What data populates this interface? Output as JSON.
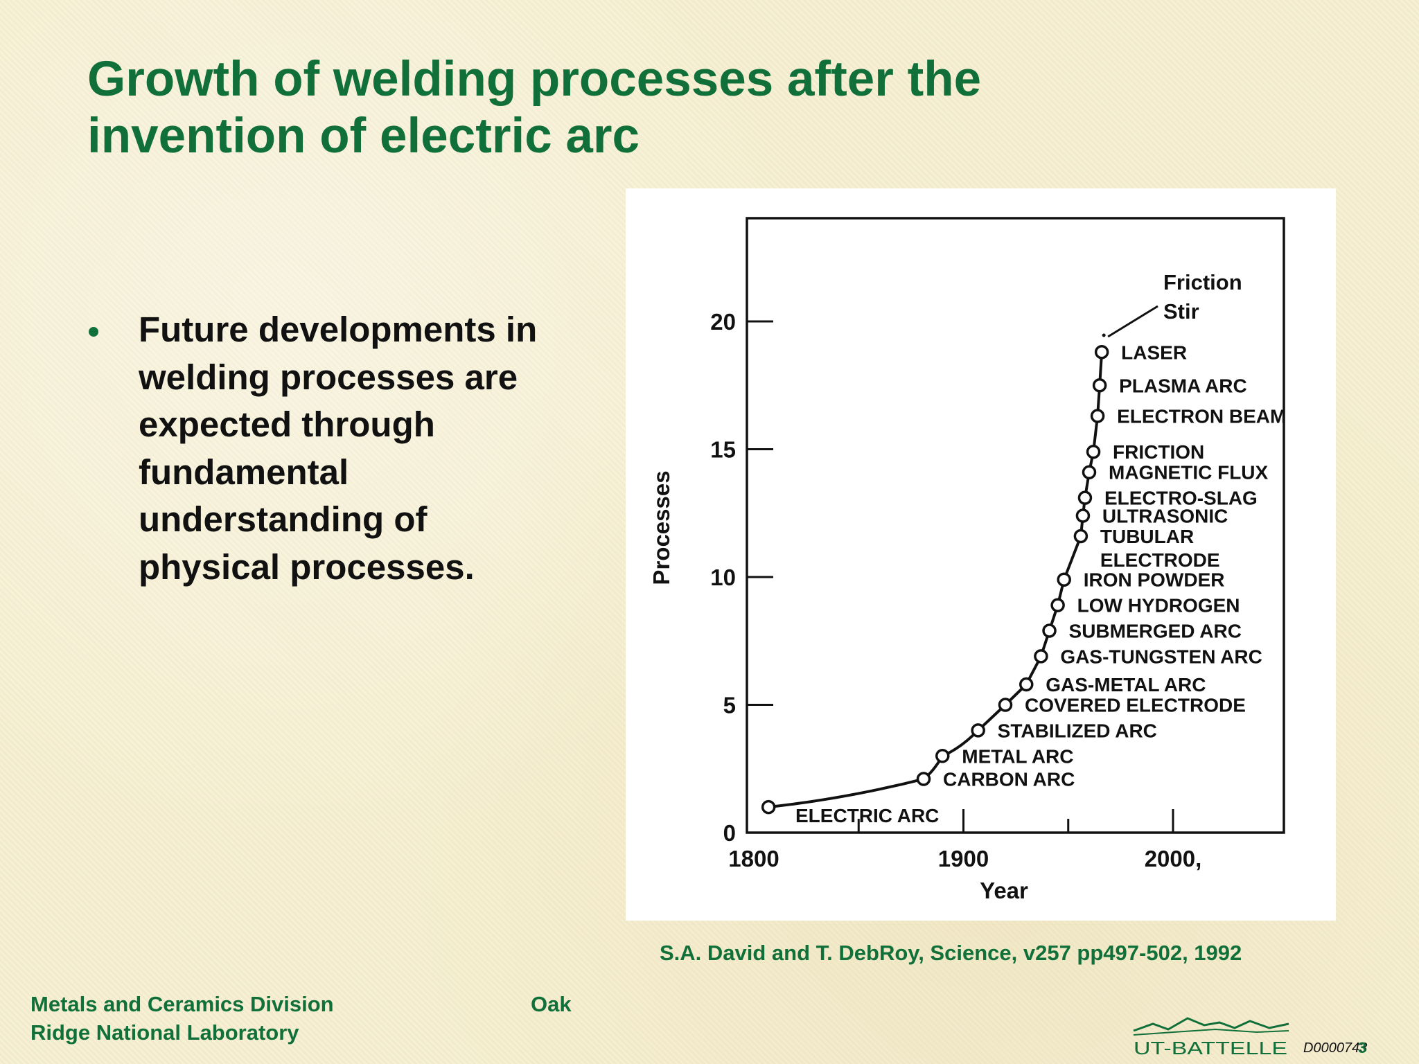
{
  "slide": {
    "title_line1": "Growth of welding processes after the",
    "title_line2": "invention of electric arc",
    "bullet_lines": [
      "Future developments in",
      "welding processes are",
      "expected through",
      "fundamental",
      "understanding of",
      "physical processes."
    ],
    "citation": "S.A. David and T. DebRoy, Science, v257 pp497-502, 1992",
    "footer_left": "Metals and Ceramics Division",
    "footer_mid": "Oak",
    "footer_left2": "Ridge National Laboratory",
    "logo_text": "UT-BATTELLE",
    "doc_id": "D0000743",
    "page_number": "3",
    "accent_color": "#11703a"
  },
  "chart_data": {
    "type": "line",
    "title": "",
    "xlabel": "Year",
    "ylabel": "Processes",
    "xlim": [
      1800,
      2050
    ],
    "ylim": [
      0,
      24
    ],
    "x_ticks": [
      1800,
      1900,
      2000
    ],
    "x_tick_labels": [
      "1800",
      "1900",
      "2000,"
    ],
    "y_ticks": [
      0,
      5,
      10,
      15,
      20
    ],
    "y_tick_labels": [
      "0",
      "5",
      "10",
      "15",
      "20"
    ],
    "grid": false,
    "legend": "none",
    "series": [
      {
        "points": [
          {
            "x": 1807,
            "y": 1,
            "label": "ELECTRIC ARC"
          },
          {
            "x": 1881,
            "y": 2.1,
            "label": "CARBON ARC"
          },
          {
            "x": 1890,
            "y": 3,
            "label": "METAL ARC"
          },
          {
            "x": 1907,
            "y": 4,
            "label": "STABILIZED ARC"
          },
          {
            "x": 1920,
            "y": 5,
            "label": "COVERED ELECTRODE"
          },
          {
            "x": 1930,
            "y": 5.8,
            "label": "GAS-METAL ARC"
          },
          {
            "x": 1937,
            "y": 6.9,
            "label": "GAS-TUNGSTEN ARC"
          },
          {
            "x": 1941,
            "y": 7.9,
            "label": "SUBMERGED ARC"
          },
          {
            "x": 1945,
            "y": 8.9,
            "label": "LOW HYDROGEN"
          },
          {
            "x": 1948,
            "y": 9.9,
            "label": "IRON POWDER"
          },
          {
            "x": 1956,
            "y": 11.6,
            "label": "TUBULAR ELECTRODE"
          },
          {
            "x": 1957,
            "y": 12.4,
            "label": "ULTRASONIC"
          },
          {
            "x": 1958,
            "y": 13.1,
            "label": "ELECTRO-SLAG"
          },
          {
            "x": 1960,
            "y": 14.1,
            "label": "MAGNETIC FLUX"
          },
          {
            "x": 1962,
            "y": 14.9,
            "label": "FRICTION"
          },
          {
            "x": 1964,
            "y": 16.3,
            "label": "ELECTRON BEAM"
          },
          {
            "x": 1965,
            "y": 17.5,
            "label": "PLASMA ARC"
          },
          {
            "x": 1966,
            "y": 18.8,
            "label": "LASER"
          }
        ]
      }
    ],
    "extra_point": {
      "x": 1967,
      "y": 20,
      "label_line1": "Friction",
      "label_line2": "Stir"
    }
  }
}
